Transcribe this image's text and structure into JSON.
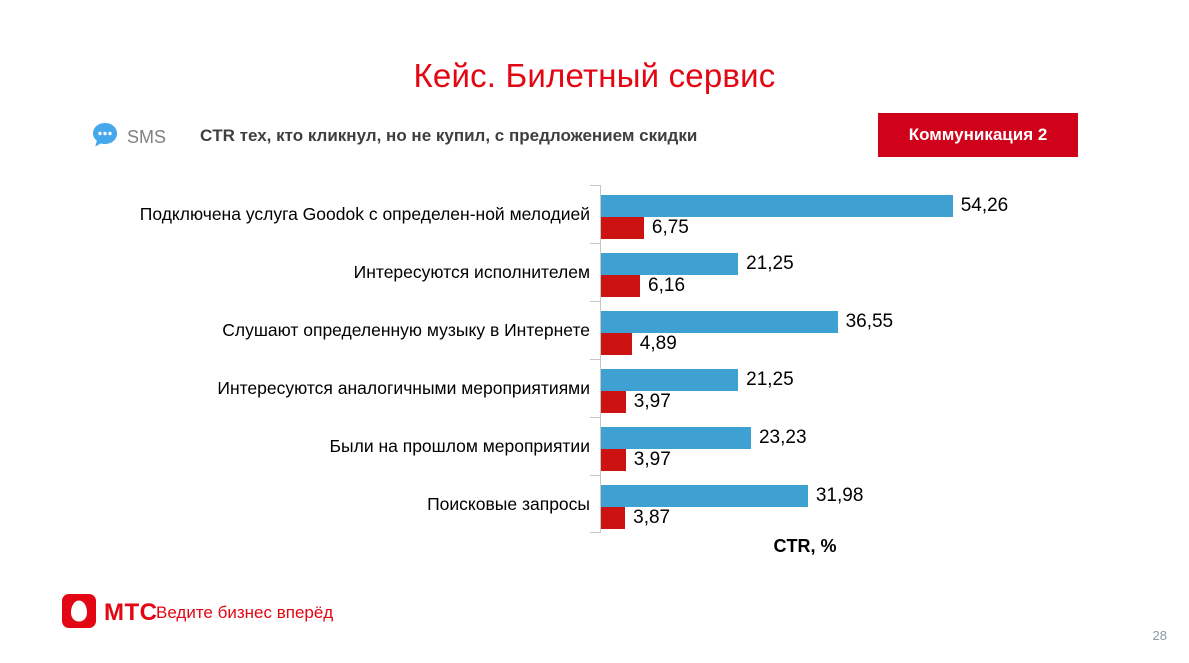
{
  "slide": {
    "title": "Кейс. Билетный сервис",
    "page_number": "28"
  },
  "header": {
    "sms_label": "SMS",
    "subtitle": "CTR тех, кто кликнул, но не купил, с предложением скидки",
    "badge": "Коммуникация 2"
  },
  "footer": {
    "logo_text": "МТС",
    "slogan": "Ведите бизнес вперёд"
  },
  "colors": {
    "brand_red": "#E30613",
    "badge_red": "#D0021B",
    "bar_blue": "#3FA0D2",
    "bar_red": "#CD1212",
    "sms_bubble_blue": "#45A7EC",
    "axis_gray": "#C6C6C6"
  },
  "chart_data": {
    "type": "bar",
    "orientation": "horizontal",
    "title": "",
    "xlabel": "CTR, %",
    "xlim": [
      0,
      60
    ],
    "grid": false,
    "legend": "none",
    "value_labels": true,
    "categories": [
      "Подключена услуга Goodok с определен-ной мелодией",
      "Интересуются исполнителем",
      "Слушают определенную музыку в Интернете",
      "Интересуются аналогичными мероприятиями",
      "Были на прошлом мероприятии",
      "Поисковые запросы"
    ],
    "series": [
      {
        "name": "",
        "color": "#3FA0D2",
        "values": [
          54.26,
          21.25,
          36.55,
          21.25,
          23.23,
          31.98
        ],
        "display": [
          "54,26",
          "21,25",
          "36,55",
          "21,25",
          "23,23",
          "31,98"
        ]
      },
      {
        "name": "",
        "color": "#CD1212",
        "values": [
          6.75,
          6.16,
          4.89,
          3.97,
          3.97,
          3.87
        ],
        "display": [
          "6,75",
          "6,16",
          "4,89",
          "3,97",
          "3,97",
          "3,87"
        ]
      }
    ]
  }
}
